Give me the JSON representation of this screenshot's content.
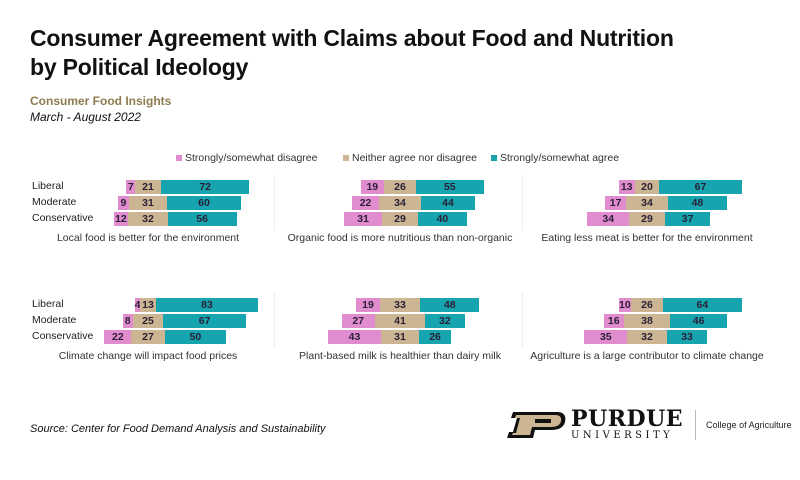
{
  "header": {
    "title_line1": "Consumer Agreement with Claims about Food and Nutrition",
    "title_line2": "by Political Ideology",
    "subtitle": "Consumer Food Insights",
    "date_range": "March - August 2022"
  },
  "footer": {
    "source": "Source:  Center for Food Demand Analysis and Sustainability",
    "logo_name": "PURDUE",
    "logo_sub": "UNIVERSITY",
    "college": "College of Agriculture"
  },
  "chart_data": {
    "type": "bar",
    "subtype": "diverging-stacked-horizontal",
    "legend": {
      "placement": "top",
      "entries": [
        "Strongly/somewhat disagree",
        "Neither agree nor disagree",
        "Strongly/somewhat agree"
      ]
    },
    "colors": {
      "disagree": "#e08ccf",
      "neutral": "#cbb592",
      "agree": "#16a4ae"
    },
    "categories": [
      "Liberal",
      "Moderate",
      "Conservative"
    ],
    "panels": [
      {
        "title": "Local food is better for the environment",
        "values": [
          [
            7,
            21,
            72
          ],
          [
            9,
            31,
            60
          ],
          [
            12,
            32,
            56
          ]
        ]
      },
      {
        "title": "Organic food is more nutritious than non-organic",
        "values": [
          [
            19,
            26,
            55
          ],
          [
            22,
            34,
            44
          ],
          [
            31,
            29,
            40
          ]
        ]
      },
      {
        "title": "Eating less meat is better for the environment",
        "values": [
          [
            13,
            20,
            67
          ],
          [
            17,
            34,
            48
          ],
          [
            34,
            29,
            37
          ]
        ]
      },
      {
        "title": "Climate change will impact food prices",
        "values": [
          [
            4,
            13,
            83
          ],
          [
            8,
            25,
            67
          ],
          [
            22,
            27,
            50
          ]
        ]
      },
      {
        "title": "Plant-based milk is healthier than dairy milk",
        "values": [
          [
            19,
            33,
            48
          ],
          [
            27,
            41,
            32
          ],
          [
            43,
            31,
            26
          ]
        ]
      },
      {
        "title": "Agriculture is a large contributor to climate change",
        "values": [
          [
            10,
            26,
            64
          ],
          [
            16,
            38,
            46
          ],
          [
            35,
            32,
            33
          ]
        ]
      }
    ]
  }
}
